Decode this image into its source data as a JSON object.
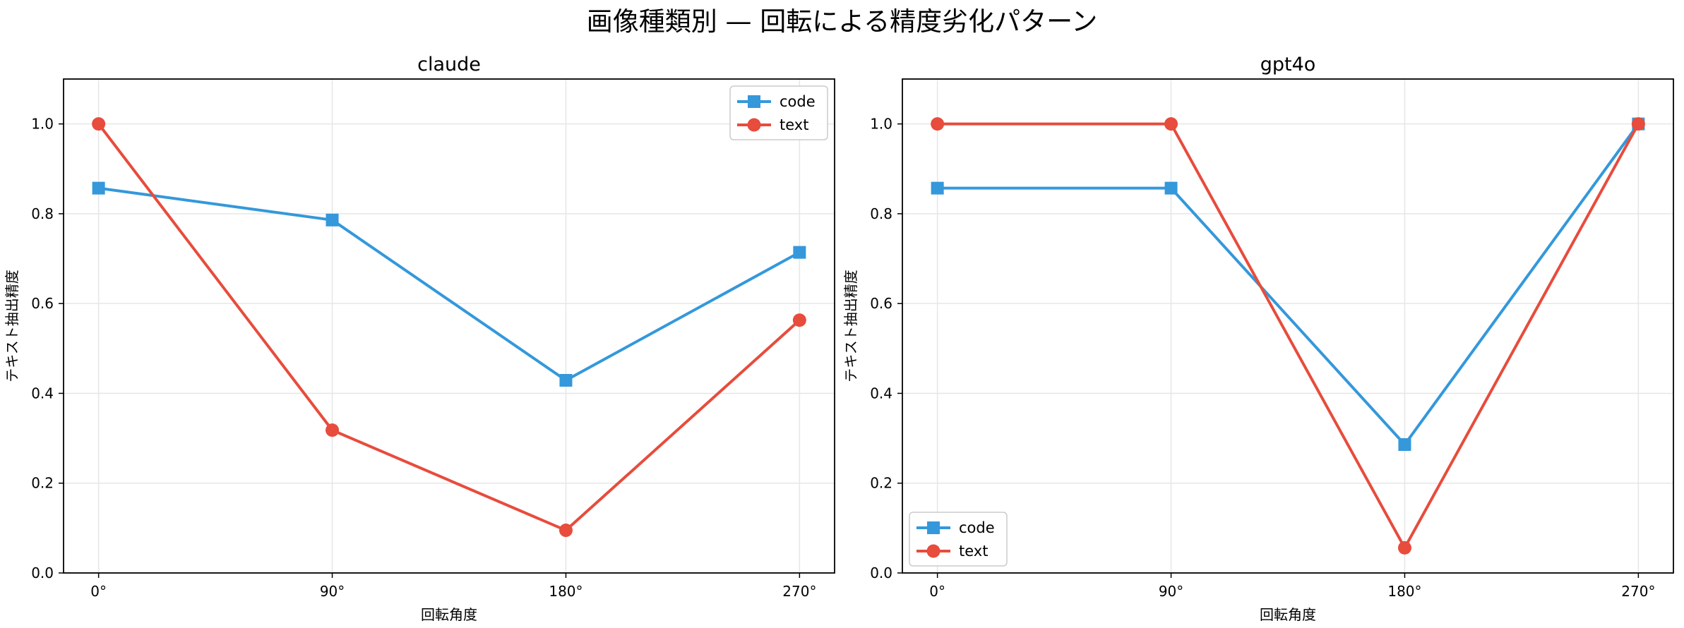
{
  "suptitle": "画像種類別 — 回転による精度劣化パターン",
  "colors": {
    "code": "#3498db",
    "text": "#e74c3c",
    "grid": "#e6e6e6",
    "axis": "#000000"
  },
  "chart_data": [
    {
      "type": "line",
      "title": "claude",
      "xlabel": "回転角度",
      "ylabel": "テキスト抽出精度",
      "categories": [
        "0°",
        "90°",
        "180°",
        "270°"
      ],
      "ylim": [
        0,
        1.1
      ],
      "yticks": [
        "0.0",
        "0.2",
        "0.4",
        "0.6",
        "0.8",
        "1.0"
      ],
      "grid": true,
      "legend_position": "upper-right",
      "series": [
        {
          "name": "code",
          "marker": "square",
          "color": "#3498db",
          "values": [
            0.857,
            0.786,
            0.429,
            0.714
          ]
        },
        {
          "name": "text",
          "marker": "circle",
          "color": "#e74c3c",
          "values": [
            1.0,
            0.318,
            0.095,
            0.563
          ]
        }
      ]
    },
    {
      "type": "line",
      "title": "gpt4o",
      "xlabel": "回転角度",
      "ylabel": "テキスト抽出精度",
      "categories": [
        "0°",
        "90°",
        "180°",
        "270°"
      ],
      "ylim": [
        0,
        1.1
      ],
      "yticks": [
        "0.0",
        "0.2",
        "0.4",
        "0.6",
        "0.8",
        "1.0"
      ],
      "grid": true,
      "legend_position": "lower-left",
      "series": [
        {
          "name": "code",
          "marker": "square",
          "color": "#3498db",
          "values": [
            0.857,
            0.857,
            0.286,
            1.0
          ]
        },
        {
          "name": "text",
          "marker": "circle",
          "color": "#e74c3c",
          "values": [
            1.0,
            1.0,
            0.056,
            1.0
          ]
        }
      ]
    }
  ]
}
